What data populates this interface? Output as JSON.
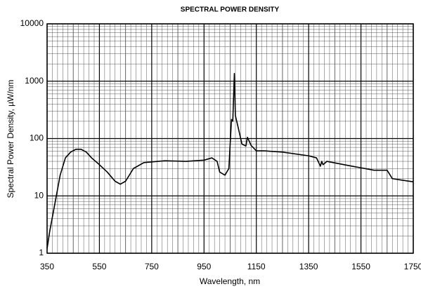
{
  "chart_data": {
    "type": "line",
    "title": "SPECTRAL POWER DENSITY",
    "x_label": "Wavelength, nm",
    "y_label": "Spectral Power Density, µW/nm",
    "x": [
      350,
      360,
      380,
      400,
      420,
      440,
      460,
      480,
      500,
      520,
      550,
      580,
      610,
      630,
      650,
      680,
      720,
      800,
      880,
      950,
      980,
      1000,
      1010,
      1030,
      1045,
      1055,
      1060,
      1066,
      1070,
      1080,
      1095,
      1110,
      1116,
      1130,
      1150,
      1180,
      1250,
      1350,
      1380,
      1395,
      1400,
      1405,
      1420,
      1500,
      1600,
      1650,
      1670,
      1700,
      1750
    ],
    "series": [
      {
        "name": "Spectral Power Density",
        "color": "#000000",
        "values": [
          1.2,
          2.4,
          7.4,
          23,
          46,
          58,
          65,
          65,
          58,
          46,
          35,
          26,
          18,
          16,
          18,
          30,
          38,
          41,
          40,
          42,
          46,
          40,
          26,
          23,
          30,
          215,
          200,
          1360,
          250,
          160,
          80,
          74,
          105,
          76,
          61,
          61,
          58,
          50,
          46,
          33,
          40,
          35,
          40,
          34,
          28,
          28,
          20,
          19,
          17.6
        ]
      }
    ],
    "xlim": [
      350,
      1750
    ],
    "xticks": [
      350,
      550,
      750,
      950,
      1150,
      1350,
      1550,
      1750
    ],
    "ylim": [
      1,
      10000
    ],
    "yticks": [
      1,
      10,
      100,
      1000,
      10000
    ],
    "y_log": true,
    "grid": true
  }
}
